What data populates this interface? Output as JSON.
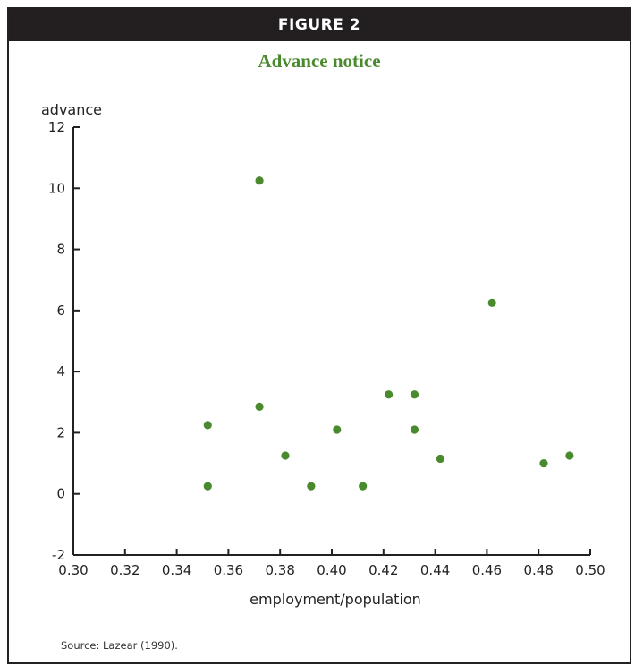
{
  "figure": {
    "banner": "FIGURE 2",
    "source": "Source: Lazear (1990)."
  },
  "colors": {
    "banner_bg": "#231f20",
    "title": "#4a8a2e",
    "point": "#4a8a2e"
  },
  "chart_data": {
    "type": "scatter",
    "title": "Advance notice",
    "xlabel": "employment/population",
    "ylabel": "advance",
    "xlim": [
      0.3,
      0.5
    ],
    "ylim": [
      -2,
      12
    ],
    "xticks": [
      "0.30",
      "0.32",
      "0.34",
      "0.36",
      "0.38",
      "0.40",
      "0.42",
      "0.44",
      "0.46",
      "0.48",
      "0.50"
    ],
    "yticks": [
      "-2",
      "0",
      "2",
      "4",
      "6",
      "8",
      "10",
      "12"
    ],
    "grid": false,
    "points": [
      {
        "x": 0.352,
        "y": 2.25
      },
      {
        "x": 0.352,
        "y": 0.25
      },
      {
        "x": 0.372,
        "y": 10.25
      },
      {
        "x": 0.372,
        "y": 2.85
      },
      {
        "x": 0.382,
        "y": 1.25
      },
      {
        "x": 0.392,
        "y": 0.25
      },
      {
        "x": 0.402,
        "y": 2.1
      },
      {
        "x": 0.412,
        "y": 0.25
      },
      {
        "x": 0.422,
        "y": 3.25
      },
      {
        "x": 0.432,
        "y": 3.25
      },
      {
        "x": 0.432,
        "y": 2.1
      },
      {
        "x": 0.442,
        "y": 1.15
      },
      {
        "x": 0.462,
        "y": 6.25
      },
      {
        "x": 0.482,
        "y": 1.0
      },
      {
        "x": 0.492,
        "y": 1.25
      }
    ]
  }
}
